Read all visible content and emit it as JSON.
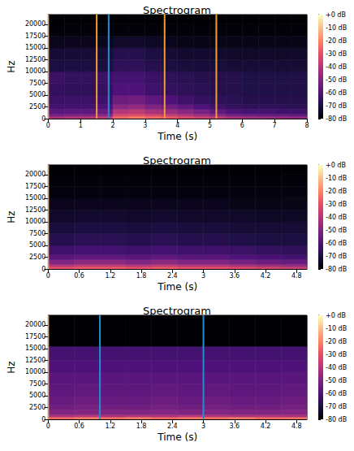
{
  "chart_data": [
    {
      "type": "heatmap",
      "title": "Spectrogram",
      "x_label": "Time (s)",
      "y_label": "Hz",
      "xlim": [
        0,
        8
      ],
      "xticks": [
        0,
        1,
        2,
        3,
        4,
        5,
        6,
        7,
        8
      ],
      "ylim": [
        0,
        22050
      ],
      "yticks": [
        0,
        2500,
        5000,
        7500,
        10000,
        12500,
        15000,
        17500,
        20000
      ],
      "time_edges": [
        0,
        0.5,
        1,
        1.5,
        2,
        2.5,
        3,
        3.5,
        4,
        4.5,
        5,
        5.5,
        6,
        6.5,
        7,
        7.5,
        8
      ],
      "freq_edges": [
        0,
        500,
        1000,
        2000,
        3000,
        5000,
        7500,
        10000,
        12500,
        15000,
        17500,
        20000,
        22050
      ],
      "cells": [
        [
          -42,
          -40,
          -40,
          -38,
          -25,
          -22,
          -25,
          -28,
          -32,
          -35,
          -38,
          -42,
          -44,
          -45,
          -46,
          -47
        ],
        [
          -52,
          -50,
          -50,
          -48,
          -32,
          -30,
          -33,
          -36,
          -40,
          -44,
          -48,
          -52,
          -54,
          -55,
          -55,
          -56
        ],
        [
          -58,
          -57,
          -57,
          -55,
          -40,
          -38,
          -42,
          -45,
          -48,
          -52,
          -56,
          -60,
          -62,
          -62,
          -63,
          -63
        ],
        [
          -62,
          -62,
          -62,
          -60,
          -48,
          -46,
          -50,
          -53,
          -56,
          -60,
          -63,
          -65,
          -66,
          -66,
          -66,
          -67
        ],
        [
          -64,
          -64,
          -64,
          -63,
          -54,
          -53,
          -57,
          -60,
          -63,
          -65,
          -66,
          -67,
          -68,
          -68,
          -68,
          -68
        ],
        [
          -65,
          -66,
          -66,
          -65,
          -60,
          -60,
          -63,
          -65,
          -66,
          -67,
          -68,
          -68,
          -69,
          -69,
          -69,
          -69
        ],
        [
          -64,
          -65,
          -65,
          -64,
          -62,
          -62,
          -64,
          -66,
          -67,
          -68,
          -68,
          -68,
          -69,
          -69,
          -69,
          -69
        ],
        [
          -70,
          -70,
          -70,
          -70,
          -66,
          -66,
          -68,
          -70,
          -71,
          -71,
          -71,
          -72,
          -72,
          -72,
          -72,
          -72
        ],
        [
          -72,
          -72,
          -72,
          -72,
          -68,
          -68,
          -70,
          -72,
          -73,
          -73,
          -73,
          -74,
          -74,
          -74,
          -74,
          -74
        ],
        [
          -76,
          -76,
          -76,
          -76,
          -74,
          -74,
          -75,
          -76,
          -77,
          -77,
          -77,
          -77,
          -77,
          -77,
          -77,
          -77
        ],
        [
          -79,
          -79,
          -79,
          -79,
          -79,
          -79,
          -79,
          -79,
          -79,
          -79,
          -79,
          -79,
          -79,
          -79,
          -79,
          -79
        ],
        [
          -80,
          -80,
          -80,
          -80,
          -80,
          -80,
          -80,
          -80,
          -80,
          -80,
          -80,
          -80,
          -80,
          -80,
          -80,
          -80
        ]
      ],
      "colorbar": {
        "lim": [
          -80,
          0
        ],
        "ticks": [
          {
            "value": 0,
            "label": "+0 dB"
          },
          {
            "value": -10,
            "label": "-10 dB"
          },
          {
            "value": -20,
            "label": "-20 dB"
          },
          {
            "value": -30,
            "label": "-30 dB"
          },
          {
            "value": -40,
            "label": "-40 dB"
          },
          {
            "value": -50,
            "label": "-50 dB"
          },
          {
            "value": -60,
            "label": "-60 dB"
          },
          {
            "value": -70,
            "label": "-70 dB"
          },
          {
            "value": -80,
            "label": "-80 dB"
          }
        ]
      },
      "lines": [
        {
          "x": 0,
          "color": "#f0a030"
        },
        {
          "x": 1.5,
          "color": "#f0a030"
        },
        {
          "x": 1.87,
          "color": "#1e90d0"
        },
        {
          "x": 3.6,
          "color": "#f0a030"
        },
        {
          "x": 5.2,
          "color": "#f0a030"
        }
      ]
    },
    {
      "type": "heatmap",
      "title": "Spectrogram",
      "x_label": "Time (s)",
      "y_label": "Hz",
      "xlim": [
        0,
        5
      ],
      "xticks": [
        0,
        0.6,
        1.2,
        1.8,
        2.4,
        3,
        3.6,
        4.2,
        4.8
      ],
      "ylim": [
        0,
        22050
      ],
      "yticks": [
        0,
        2500,
        5000,
        7500,
        10000,
        12500,
        15000,
        17500,
        20000
      ],
      "time_edges": [
        0,
        0.5,
        1,
        1.5,
        2,
        2.5,
        3,
        3.5,
        4,
        4.5,
        5
      ],
      "freq_edges": [
        0,
        500,
        1000,
        2000,
        3000,
        5000,
        7500,
        10000,
        12500,
        15000,
        17500,
        20000,
        22050
      ],
      "cells": [
        [
          -30,
          -28,
          -28,
          -30,
          -28,
          -30,
          -30,
          -32,
          -34,
          -36
        ],
        [
          -40,
          -38,
          -38,
          -40,
          -38,
          -40,
          -40,
          -42,
          -44,
          -46
        ],
        [
          -50,
          -48,
          -48,
          -50,
          -48,
          -50,
          -50,
          -52,
          -54,
          -55
        ],
        [
          -58,
          -56,
          -56,
          -58,
          -56,
          -58,
          -58,
          -60,
          -61,
          -62
        ],
        [
          -63,
          -62,
          -62,
          -63,
          -62,
          -63,
          -63,
          -64,
          -65,
          -66
        ],
        [
          -68,
          -67,
          -67,
          -68,
          -67,
          -68,
          -68,
          -69,
          -70,
          -70
        ],
        [
          -71,
          -70,
          -70,
          -71,
          -70,
          -71,
          -71,
          -72,
          -72,
          -72
        ],
        [
          -74,
          -73,
          -73,
          -74,
          -73,
          -74,
          -74,
          -74,
          -75,
          -75
        ],
        [
          -76,
          -76,
          -76,
          -76,
          -76,
          -76,
          -76,
          -77,
          -77,
          -77
        ],
        [
          -78,
          -78,
          -78,
          -78,
          -78,
          -78,
          -78,
          -78,
          -78,
          -78
        ],
        [
          -79,
          -79,
          -79,
          -79,
          -79,
          -79,
          -79,
          -79,
          -79,
          -79
        ],
        [
          -80,
          -80,
          -80,
          -80,
          -80,
          -80,
          -80,
          -80,
          -80,
          -80
        ]
      ],
      "colorbar": {
        "lim": [
          -80,
          0
        ],
        "ticks": [
          {
            "value": 0,
            "label": "+0 dB"
          },
          {
            "value": -10,
            "label": "-10 dB"
          },
          {
            "value": -20,
            "label": "-20 dB"
          },
          {
            "value": -30,
            "label": "-30 dB"
          },
          {
            "value": -40,
            "label": "-40 dB"
          },
          {
            "value": -50,
            "label": "-50 dB"
          },
          {
            "value": -60,
            "label": "-60 dB"
          },
          {
            "value": -70,
            "label": "-70 dB"
          },
          {
            "value": -80,
            "label": "-80 dB"
          }
        ]
      },
      "lines": [
        {
          "x": 0,
          "color": "#f0a030"
        }
      ]
    },
    {
      "type": "heatmap",
      "title": "Spectrogram",
      "x_label": "Time (s)",
      "y_label": "Hz",
      "xlim": [
        0,
        5
      ],
      "xticks": [
        0,
        0.6,
        1.2,
        1.8,
        2.4,
        3,
        3.6,
        4.2,
        4.8
      ],
      "ylim": [
        0,
        22050
      ],
      "yticks": [
        0,
        2500,
        5000,
        7500,
        10000,
        12500,
        15000,
        17500,
        20000
      ],
      "time_edges": [
        0,
        0.5,
        1,
        1.5,
        2,
        2.5,
        3,
        3.5,
        4,
        4.5,
        5
      ],
      "freq_edges": [
        0,
        500,
        1000,
        2000,
        3000,
        5000,
        7500,
        10000,
        12500,
        15500,
        22050
      ],
      "cells": [
        [
          -25,
          -22,
          -24,
          -22,
          -25,
          -23,
          -24,
          -22,
          -25,
          -24
        ],
        [
          -42,
          -40,
          -42,
          -41,
          -42,
          -40,
          -41,
          -42,
          -41,
          -42
        ],
        [
          -50,
          -49,
          -50,
          -50,
          -49,
          -50,
          -49,
          -50,
          -50,
          -49
        ],
        [
          -53,
          -52,
          -53,
          -53,
          -52,
          -53,
          -52,
          -53,
          -53,
          -52
        ],
        [
          -55,
          -54,
          -55,
          -55,
          -54,
          -55,
          -54,
          -55,
          -55,
          -54
        ],
        [
          -57,
          -56,
          -57,
          -57,
          -56,
          -57,
          -56,
          -57,
          -57,
          -56
        ],
        [
          -58,
          -58,
          -58,
          -58,
          -58,
          -58,
          -58,
          -58,
          -58,
          -58
        ],
        [
          -60,
          -60,
          -60,
          -60,
          -60,
          -60,
          -60,
          -60,
          -60,
          -60
        ],
        [
          -62,
          -62,
          -62,
          -62,
          -62,
          -62,
          -62,
          -62,
          -62,
          -62
        ],
        [
          -80,
          -80,
          -80,
          -80,
          -80,
          -80,
          -80,
          -80,
          -80,
          -80
        ]
      ],
      "colorbar": {
        "lim": [
          -80,
          0
        ],
        "ticks": [
          {
            "value": 0,
            "label": "+0 dB"
          },
          {
            "value": -10,
            "label": "-10 dB"
          },
          {
            "value": -20,
            "label": "-20 dB"
          },
          {
            "value": -30,
            "label": "-30 dB"
          },
          {
            "value": -40,
            "label": "-40 dB"
          },
          {
            "value": -50,
            "label": "-50 dB"
          },
          {
            "value": -60,
            "label": "-60 dB"
          },
          {
            "value": -70,
            "label": "-70 dB"
          },
          {
            "value": -80,
            "label": "-80 dB"
          }
        ]
      },
      "lines": [
        {
          "x": 0,
          "color": "#f0a030"
        },
        {
          "x": 1,
          "color": "#1e90d0"
        },
        {
          "x": 3,
          "color": "#1e90d0"
        }
      ]
    }
  ]
}
